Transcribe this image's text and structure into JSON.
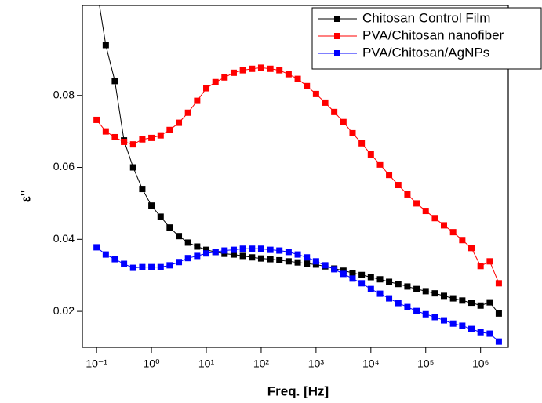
{
  "chart_data": {
    "type": "line",
    "x_label": "Freq. [Hz]",
    "y_label": "ε''",
    "log_x": true,
    "xlim": [
      0.055,
      3200000
    ],
    "ylim": [
      0.01,
      0.105
    ],
    "xticks": [
      {
        "value": 0.1,
        "label": "10⁻¹"
      },
      {
        "value": 1,
        "label": "10⁰"
      },
      {
        "value": 10,
        "label": "10¹"
      },
      {
        "value": 100,
        "label": "10²"
      },
      {
        "value": 1000,
        "label": "10³"
      },
      {
        "value": 10000,
        "label": "10⁴"
      },
      {
        "value": 100000,
        "label": "10⁵"
      },
      {
        "value": 1000000,
        "label": "10⁶"
      }
    ],
    "yticks": [
      0.02,
      0.04,
      0.06,
      0.08
    ],
    "legend_position": "top-right",
    "x": [
      0.1,
      0.147,
      0.215,
      0.316,
      0.464,
      0.681,
      1,
      1.47,
      2.15,
      3.16,
      4.64,
      6.81,
      10,
      14.7,
      21.5,
      31.6,
      46.4,
      68.1,
      100,
      147,
      215,
      316,
      464,
      681,
      1000,
      1470,
      2150,
      3160,
      4640,
      6810,
      10000,
      14700,
      21500,
      31600,
      46400,
      68100,
      100000,
      147000,
      215000,
      316000,
      464000,
      681000,
      1000000,
      1470000,
      2150000
    ],
    "series": [
      {
        "name": "Chitosan Control Film",
        "color": "#000000",
        "values": [
          0.11,
          0.094,
          0.084,
          0.0675,
          0.06,
          0.054,
          0.0494,
          0.0463,
          0.0433,
          0.0409,
          0.0391,
          0.038,
          0.0371,
          0.0365,
          0.036,
          0.0358,
          0.0354,
          0.035,
          0.0347,
          0.0345,
          0.0342,
          0.0339,
          0.0336,
          0.0333,
          0.033,
          0.0325,
          0.0319,
          0.0313,
          0.0307,
          0.0301,
          0.0295,
          0.0289,
          0.0282,
          0.0276,
          0.0269,
          0.0262,
          0.0256,
          0.025,
          0.0243,
          0.0236,
          0.023,
          0.0224,
          0.0216,
          0.0225,
          0.0194
        ]
      },
      {
        "name": "PVA/Chitosan nanofiber",
        "color": "#ff0000",
        "values": [
          0.0732,
          0.07,
          0.0684,
          0.0671,
          0.0664,
          0.0678,
          0.0682,
          0.0689,
          0.0704,
          0.0724,
          0.0752,
          0.0785,
          0.082,
          0.0837,
          0.085,
          0.0863,
          0.087,
          0.0874,
          0.0877,
          0.0874,
          0.087,
          0.0859,
          0.0846,
          0.0826,
          0.0804,
          0.078,
          0.0754,
          0.0726,
          0.0695,
          0.0667,
          0.0636,
          0.0608,
          0.0579,
          0.0551,
          0.0525,
          0.05,
          0.0479,
          0.0459,
          0.0439,
          0.042,
          0.0398,
          0.0376,
          0.0326,
          0.0339,
          0.0278
        ]
      },
      {
        "name": "PVA/Chitosan/AgNPs",
        "color": "#0000ff",
        "values": [
          0.0378,
          0.0358,
          0.0345,
          0.0332,
          0.0321,
          0.0323,
          0.0323,
          0.0323,
          0.0328,
          0.0337,
          0.0348,
          0.0354,
          0.0361,
          0.0365,
          0.0369,
          0.0371,
          0.0374,
          0.0374,
          0.0374,
          0.0371,
          0.0369,
          0.0365,
          0.0358,
          0.035,
          0.0339,
          0.0328,
          0.0317,
          0.0304,
          0.0291,
          0.0278,
          0.0262,
          0.0249,
          0.0236,
          0.0223,
          0.0212,
          0.0201,
          0.0192,
          0.0184,
          0.0175,
          0.0166,
          0.016,
          0.0151,
          0.0142,
          0.0138,
          0.0116
        ]
      }
    ]
  }
}
